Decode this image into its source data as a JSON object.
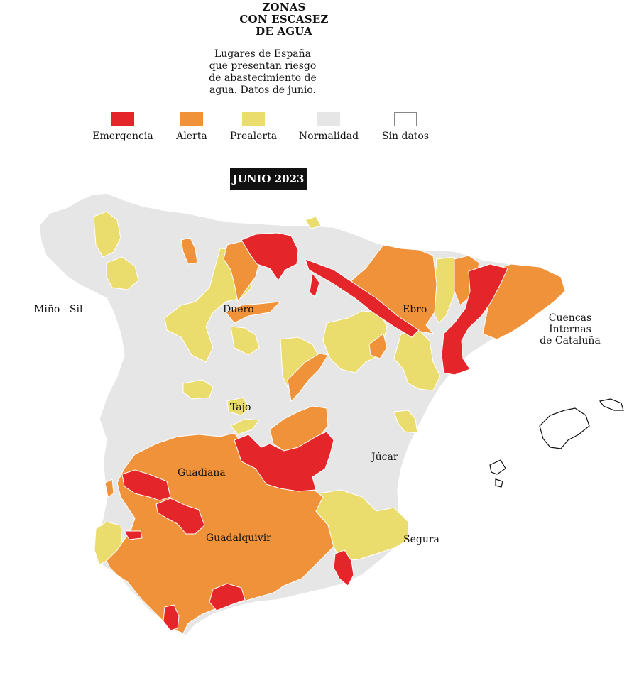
{
  "header": {
    "title_lines": [
      "ZONAS",
      "CON ESCASEZ",
      "DE AGUA"
    ],
    "subtitle_lines": [
      "Lugares de España",
      "que presentan riesgo",
      "de abastecimiento de",
      "agua. Datos de junio."
    ]
  },
  "legend": [
    {
      "label": "Emergencia",
      "color": "#e4262b"
    },
    {
      "label": "Alerta",
      "color": "#f0923a"
    },
    {
      "label": "Prealerta",
      "color": "#ebdc6e"
    },
    {
      "label": "Normalidad",
      "color": "#e6e6e6"
    },
    {
      "label": "Sin datos",
      "color": "#ffffff"
    }
  ],
  "period_badge": "JUNIO 2023",
  "basins": {
    "mino_sil": "Miño - Sil",
    "duero": "Duero",
    "ebro": "Ebro",
    "cuencas_internas": [
      "Cuencas",
      "Internas",
      "de Cataluña"
    ],
    "tajo": "Tajo",
    "jucar": "Júcar",
    "guadiana": "Guadiana",
    "guadalquivir": "Guadalquivir",
    "segura": "Segura"
  }
}
